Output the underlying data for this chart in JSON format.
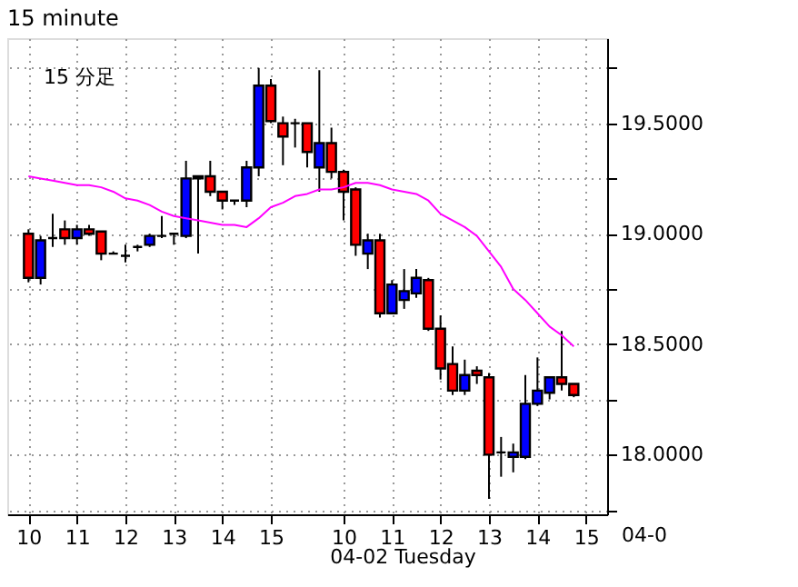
{
  "chart_data": {
    "type": "candlestick",
    "title": "15 minute",
    "categories": [
      "10",
      null,
      null,
      null,
      "11",
      null,
      null,
      null,
      "12",
      null,
      null,
      null,
      "13",
      null,
      null,
      null,
      "14",
      null,
      null,
      null,
      "15",
      null,
      null,
      null,
      null,
      null,
      "10",
      null,
      null,
      null,
      "11",
      null,
      null,
      null,
      "12",
      null,
      null,
      null,
      "13",
      null,
      null,
      null,
      "14",
      null,
      null,
      null,
      "15"
    ],
    "ohlc": [
      [
        19.0,
        19.02,
        18.78,
        18.8
      ],
      [
        18.8,
        18.99,
        18.77,
        18.97
      ],
      [
        18.98,
        19.09,
        18.94,
        18.98
      ],
      [
        19.02,
        19.06,
        18.95,
        18.98
      ],
      [
        18.98,
        19.04,
        18.95,
        19.02
      ],
      [
        19.02,
        19.04,
        18.99,
        19.0
      ],
      [
        19.01,
        19.01,
        18.88,
        18.91
      ],
      [
        18.91,
        18.92,
        18.91,
        18.91
      ],
      [
        18.9,
        18.95,
        18.87,
        18.9
      ],
      [
        18.94,
        18.95,
        18.92,
        18.94
      ],
      [
        18.95,
        19.0,
        18.94,
        18.99
      ],
      [
        18.99,
        19.08,
        18.98,
        18.99
      ],
      [
        19.0,
        19.0,
        18.95,
        19.0
      ],
      [
        18.99,
        19.33,
        18.98,
        19.25
      ],
      [
        19.25,
        19.26,
        18.91,
        19.26
      ],
      [
        19.26,
        19.33,
        19.17,
        19.19
      ],
      [
        19.19,
        19.19,
        19.11,
        19.15
      ],
      [
        19.15,
        19.15,
        19.13,
        19.15
      ],
      [
        19.15,
        19.33,
        19.12,
        19.3
      ],
      [
        19.3,
        19.75,
        19.26,
        19.67
      ],
      [
        19.67,
        19.7,
        19.5,
        19.51
      ],
      [
        19.5,
        19.53,
        19.31,
        19.44
      ],
      [
        19.5,
        19.52,
        19.39,
        19.5
      ],
      [
        19.5,
        19.5,
        19.3,
        19.37
      ],
      [
        19.3,
        19.74,
        19.19,
        19.41
      ],
      [
        19.41,
        19.48,
        19.25,
        19.28
      ],
      [
        19.28,
        19.29,
        19.06,
        19.19
      ],
      [
        19.2,
        19.21,
        18.9,
        18.95
      ],
      [
        18.91,
        19.0,
        18.84,
        18.97
      ],
      [
        18.97,
        19.0,
        18.62,
        18.64
      ],
      [
        18.64,
        18.79,
        18.64,
        18.77
      ],
      [
        18.7,
        18.84,
        18.66,
        18.74
      ],
      [
        18.73,
        18.84,
        18.71,
        18.8
      ],
      [
        18.79,
        18.8,
        18.56,
        18.57
      ],
      [
        18.57,
        18.63,
        18.34,
        18.39
      ],
      [
        18.41,
        18.49,
        18.27,
        18.29
      ],
      [
        18.29,
        18.43,
        18.27,
        18.36
      ],
      [
        18.38,
        18.4,
        18.32,
        18.36
      ],
      [
        18.35,
        18.37,
        17.8,
        18.0
      ],
      [
        18.01,
        18.08,
        17.9,
        18.01
      ],
      [
        17.99,
        18.05,
        17.92,
        18.01
      ],
      [
        17.99,
        18.36,
        17.98,
        18.23
      ],
      [
        18.23,
        18.44,
        18.22,
        18.29
      ],
      [
        18.28,
        18.35,
        18.25,
        18.35
      ],
      [
        18.35,
        18.56,
        18.29,
        18.32
      ],
      [
        18.32,
        18.32,
        18.26,
        18.27
      ],
      null
    ],
    "colors": [
      "#ff0000",
      "#0000ff",
      "#000000",
      "#ff0000",
      "#0000ff",
      "#ff0000",
      "#ff0000",
      "#000000",
      "#000000",
      "#000000",
      "#0000ff",
      "#000000",
      "#000000",
      "#0000ff",
      "#0000ff",
      "#ff0000",
      "#ff0000",
      "#000000",
      "#0000ff",
      "#0000ff",
      "#ff0000",
      "#ff0000",
      "#000000",
      "#ff0000",
      "#0000ff",
      "#ff0000",
      "#ff0000",
      "#ff0000",
      "#0000ff",
      "#ff0000",
      "#0000ff",
      "#0000ff",
      "#0000ff",
      "#ff0000",
      "#ff0000",
      "#ff0000",
      "#0000ff",
      "#ff0000",
      "#ff0000",
      "#000000",
      "#0000ff",
      "#0000ff",
      "#0000ff",
      "#0000ff",
      "#ff0000",
      "#ff0000",
      null
    ],
    "series": [
      {
        "type": "line",
        "color": "#ff00ff",
        "values": [
          19.26,
          19.25,
          19.24,
          19.23,
          19.22,
          19.22,
          19.21,
          19.19,
          19.16,
          19.15,
          19.13,
          19.1,
          19.08,
          19.07,
          19.06,
          19.05,
          19.04,
          19.04,
          19.03,
          19.07,
          19.12,
          19.14,
          19.17,
          19.18,
          19.2,
          19.2,
          19.21,
          19.23,
          19.23,
          19.22,
          19.2,
          19.19,
          19.18,
          19.15,
          19.09,
          19.06,
          19.03,
          18.99,
          18.92,
          18.85,
          18.75,
          18.7,
          18.64,
          18.58,
          18.54,
          18.49,
          null
        ]
      }
    ],
    "ylim": [
      17.73,
      19.885
    ],
    "yticks": [
      {
        "value": 17.75,
        "label": null
      },
      {
        "value": 18,
        "label": "18.0000"
      },
      {
        "value": 18.25,
        "label": null
      },
      {
        "value": 18.5,
        "label": "18.5000"
      },
      {
        "value": 18.75,
        "label": null
      },
      {
        "value": 19,
        "label": "19.0000"
      },
      {
        "value": 19.25,
        "label": null
      },
      {
        "value": 19.5,
        "label": "19.5000"
      },
      {
        "value": 19.75,
        "label": null
      }
    ],
    "grid": true,
    "annotations": [
      "15 分足",
      "04-02 Tuesday",
      "04-0"
    ]
  }
}
